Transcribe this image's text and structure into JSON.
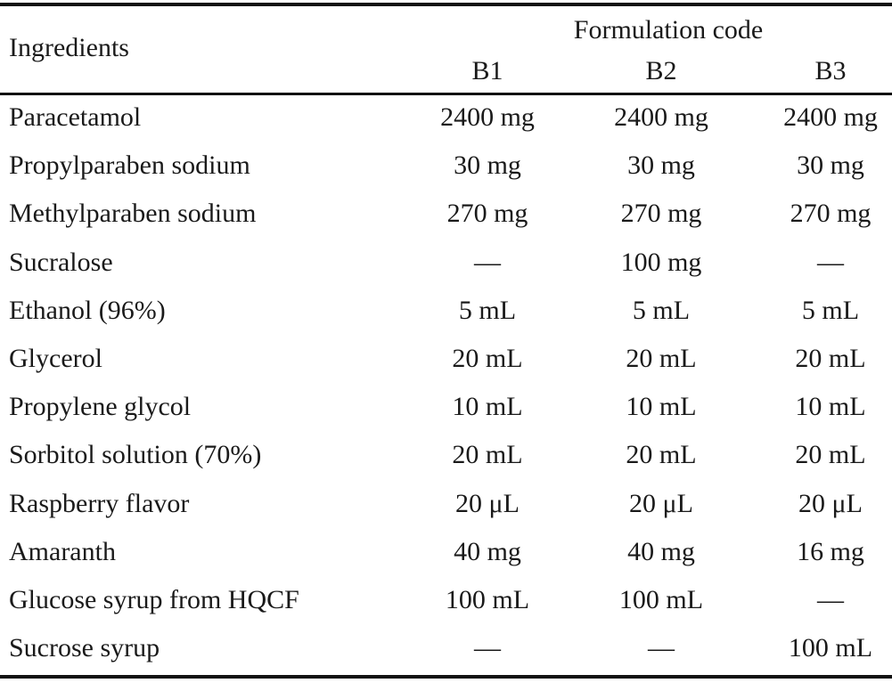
{
  "table": {
    "header": {
      "ingredients_label": "Ingredients",
      "group_label": "Formulation code",
      "columns": [
        "B1",
        "B2",
        "B3"
      ]
    },
    "rows": [
      {
        "ingredient": "Paracetamol",
        "values": [
          "2400 mg",
          "2400 mg",
          "2400 mg"
        ]
      },
      {
        "ingredient": "Propylparaben sodium",
        "values": [
          "30 mg",
          "30 mg",
          "30 mg"
        ]
      },
      {
        "ingredient": "Methylparaben sodium",
        "values": [
          "270 mg",
          "270 mg",
          "270 mg"
        ]
      },
      {
        "ingredient": "Sucralose",
        "values": [
          "—",
          "100 mg",
          "—"
        ]
      },
      {
        "ingredient": "Ethanol (96%)",
        "values": [
          "5 mL",
          "5 mL",
          "5 mL"
        ]
      },
      {
        "ingredient": "Glycerol",
        "values": [
          "20 mL",
          "20 mL",
          "20 mL"
        ]
      },
      {
        "ingredient": "Propylene glycol",
        "values": [
          "10 mL",
          "10 mL",
          "10 mL"
        ]
      },
      {
        "ingredient": "Sorbitol solution (70%)",
        "values": [
          "20 mL",
          "20 mL",
          "20 mL"
        ]
      },
      {
        "ingredient": "Raspberry flavor",
        "values": [
          "20 μL",
          "20 μL",
          "20 μL"
        ]
      },
      {
        "ingredient": "Amaranth",
        "values": [
          "40 mg",
          "40 mg",
          "16 mg"
        ]
      },
      {
        "ingredient": "Glucose syrup from HQCF",
        "values": [
          "100 mL",
          "100 mL",
          "—"
        ]
      },
      {
        "ingredient": "Sucrose syrup",
        "values": [
          "—",
          "—",
          "100 mL"
        ]
      }
    ]
  }
}
